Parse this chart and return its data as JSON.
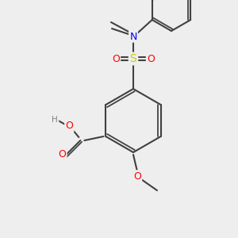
{
  "background_color": "#eeeeee",
  "bond_color": "#404040",
  "bond_lw": 1.5,
  "atom_colors": {
    "O": "#ff0000",
    "N": "#0000ff",
    "S": "#cccc00",
    "C": "#404040",
    "H": "#808080"
  },
  "font_size": 9,
  "font_size_small": 7.5
}
